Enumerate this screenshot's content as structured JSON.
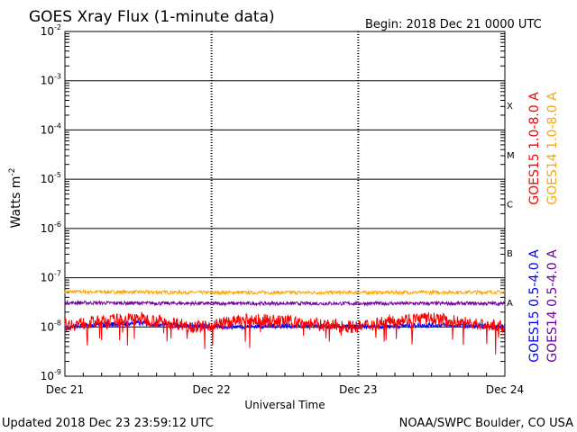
{
  "header": {
    "title": "GOES Xray Flux (1-minute data)",
    "begin": "Begin:  2018 Dec 21 0000 UTC"
  },
  "footer": {
    "updated": "Updated 2018 Dec 23 23:59:12 UTC",
    "credit": "NOAA/SWPC Boulder, CO USA"
  },
  "chart_data": {
    "type": "line",
    "title": "GOES Xray Flux (1-minute data)",
    "xlabel": "Universal Time",
    "ylabel_main": "Watts m",
    "ylabel_exp": "-2",
    "y_scale": "log",
    "ylim": [
      1e-09,
      0.01
    ],
    "xlim_days": [
      0,
      3
    ],
    "y_ticks": [
      {
        "base": "10",
        "exp": "-2",
        "value": 0.01
      },
      {
        "base": "10",
        "exp": "-3",
        "value": 0.001
      },
      {
        "base": "10",
        "exp": "-4",
        "value": 0.0001
      },
      {
        "base": "10",
        "exp": "-5",
        "value": 1e-05
      },
      {
        "base": "10",
        "exp": "-6",
        "value": 1e-06
      },
      {
        "base": "10",
        "exp": "-7",
        "value": 1e-07
      },
      {
        "base": "10",
        "exp": "-8",
        "value": 1e-08
      },
      {
        "base": "10",
        "exp": "-9",
        "value": 1e-09
      }
    ],
    "x_ticks": [
      {
        "label": "Dec 21",
        "day": 0
      },
      {
        "label": "Dec 22",
        "day": 1
      },
      {
        "label": "Dec 23",
        "day": 2
      },
      {
        "label": "Dec 24",
        "day": 3
      }
    ],
    "flare_classes": [
      {
        "label": "X",
        "value": 0.0001
      },
      {
        "label": "M",
        "value": 1e-05
      },
      {
        "label": "C",
        "value": 1e-06
      },
      {
        "label": "B",
        "value": 1e-07
      },
      {
        "label": "A",
        "value": 1e-08
      }
    ],
    "grid": "horizontal lines at each decade; dotted vertical lines at day boundaries",
    "legend_placement": "right side, vertical",
    "series": [
      {
        "name": "GOES15 1.0-8.0 A",
        "color": "#ff0000",
        "x_days": [
          0,
          0.25,
          0.5,
          0.75,
          0.9,
          1.0,
          1.25,
          1.5,
          1.75,
          2.0,
          2.25,
          2.5,
          2.75,
          3.0
        ],
        "y_values": [
          1.1e-08,
          1.3e-08,
          1.5e-08,
          1.2e-08,
          1e-08,
          1.1e-08,
          1.4e-08,
          1.3e-08,
          1.1e-08,
          1e-08,
          1.4e-08,
          1.5e-08,
          1.2e-08,
          1e-08
        ]
      },
      {
        "name": "GOES14 1.0-8.0 A",
        "color": "#ffa500",
        "x_days": [
          0,
          1,
          2,
          3
        ],
        "y_values": [
          5.2e-08,
          5e-08,
          5e-08,
          5.1e-08
        ]
      },
      {
        "name": "GOES15 0.5-4.0 A",
        "color": "#0000ff",
        "x_days": [
          0,
          0.25,
          0.5,
          0.75,
          1.0,
          1.5,
          2.0,
          2.5,
          3.0
        ],
        "y_values": [
          1e-08,
          1.1e-08,
          1.2e-08,
          1.1e-08,
          1e-08,
          1.05e-08,
          1e-08,
          1.1e-08,
          1e-08
        ]
      },
      {
        "name": "GOES14 0.5-4.0 A",
        "color": "#7000a0",
        "x_days": [
          0,
          1,
          2,
          3
        ],
        "y_values": [
          3.1e-08,
          3e-08,
          3e-08,
          3e-08
        ]
      }
    ]
  }
}
